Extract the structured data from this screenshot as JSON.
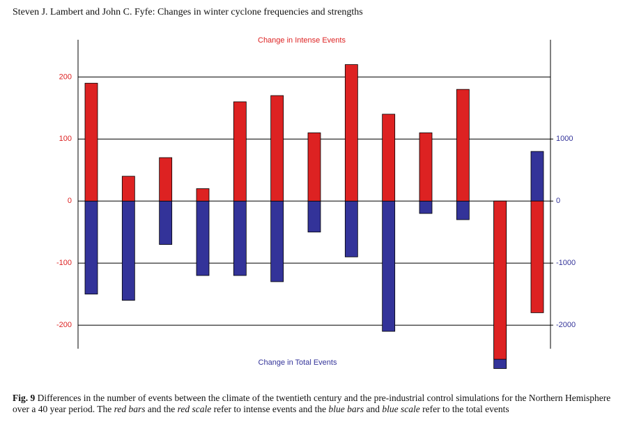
{
  "header": "Steven J. Lambert and John C. Fyfe: Changes in winter cyclone frequencies and strengths",
  "chart_data": {
    "type": "bar",
    "series": [
      {
        "name": "Change in Intense Events",
        "color": "#dd2222",
        "values": [
          190,
          40,
          70,
          20,
          160,
          170,
          110,
          220,
          140,
          110,
          180,
          -255,
          -180
        ]
      },
      {
        "name": "Change in Total Events",
        "color": "#333399",
        "axis": "y2",
        "values": [
          -1500,
          -1600,
          -700,
          -1200,
          -1200,
          -1300,
          -500,
          -900,
          -2100,
          -200,
          -300,
          -2700,
          800
        ]
      }
    ],
    "ylim": [
      -238,
      260
    ],
    "yticks": [
      200,
      100,
      0,
      -100,
      -200
    ],
    "y2lim": [
      -2380,
      2600
    ],
    "y2ticks": [
      1000,
      0,
      -1000,
      -2000
    ],
    "grid": true
  },
  "caption": {
    "label": "Fig. 9",
    "parts": [
      "Differences in the number of events between the climate of the twentieth century and the pre-industrial control simulations for the Northern Hemisphere over a 40 year period. The ",
      "red bars",
      " and the ",
      "red scale",
      " refer to intense events and the ",
      "blue bars",
      " and ",
      "blue scale",
      " refer to the total events"
    ]
  }
}
